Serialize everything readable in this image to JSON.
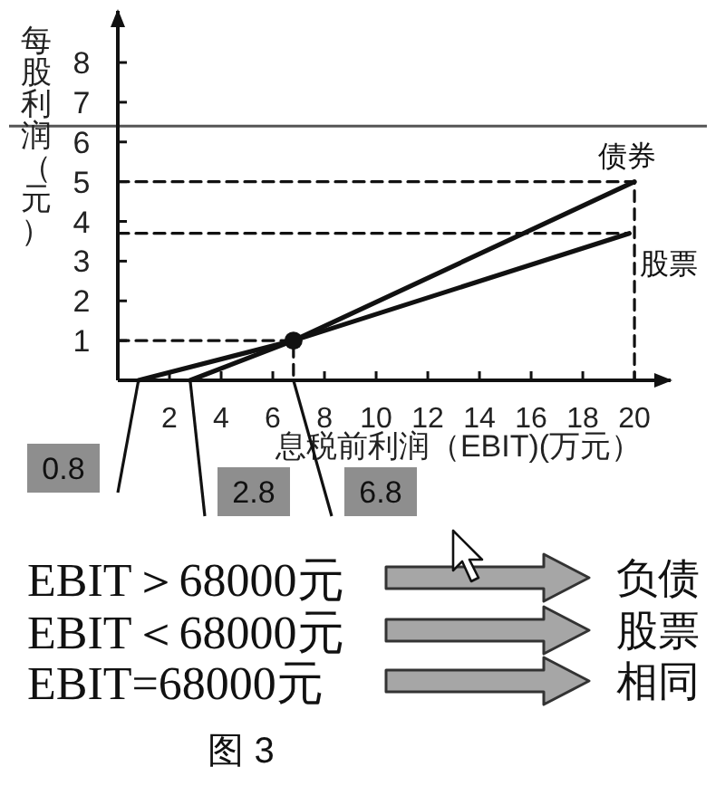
{
  "chart_data": {
    "type": "line",
    "xlabel": "息税前利润（EBIT)(万元）",
    "ylabel": "每股利润（元）",
    "xlim": [
      0,
      21.4
    ],
    "ylim": [
      0,
      9.3
    ],
    "xticks": [
      2,
      4,
      6,
      8,
      10,
      12,
      14,
      16,
      18,
      20
    ],
    "yticks": [
      1,
      2,
      3,
      4,
      5,
      6,
      7,
      8
    ],
    "series": [
      {
        "name": "债券",
        "color": "#111111",
        "x": [
          2.8,
          6.8,
          20
        ],
        "values": [
          0,
          1,
          5
        ]
      },
      {
        "name": "股票",
        "color": "#111111",
        "x": [
          0.8,
          6.8,
          19.8
        ],
        "values": [
          0,
          1,
          3.7
        ]
      },
      {
        "type": "line",
        "line_style": "dashed",
        "color": "#111111",
        "x": [
          0,
          6.8,
          6.8
        ],
        "values": [
          1,
          1,
          0
        ]
      },
      {
        "type": "line",
        "line_style": "dashed",
        "color": "#111111",
        "x": [
          0,
          20,
          20
        ],
        "values": [
          5,
          5,
          0
        ]
      },
      {
        "type": "line",
        "line_style": "dashed",
        "color": "#111111",
        "x": [
          0,
          19.8
        ],
        "values": [
          3.7,
          3.7
        ]
      },
      {
        "type": "scatter",
        "marker": "circle",
        "color": "#111111",
        "x": [
          6.8
        ],
        "values": [
          1
        ]
      }
    ],
    "ref_lines": [
      {
        "axis": "y",
        "value": 6.4,
        "color": "#555555"
      }
    ],
    "annotations": [
      {
        "text": "0.8",
        "x": 0.8,
        "y": 0
      },
      {
        "text": "2.8",
        "x": 2.8,
        "y": 0
      },
      {
        "text": "6.8",
        "x": 6.8,
        "y": 0
      },
      "EBIT＞68000元",
      "负债",
      "EBIT＜68000元",
      "股票",
      "EBIT=68000元",
      "相同",
      "图 3"
    ]
  }
}
